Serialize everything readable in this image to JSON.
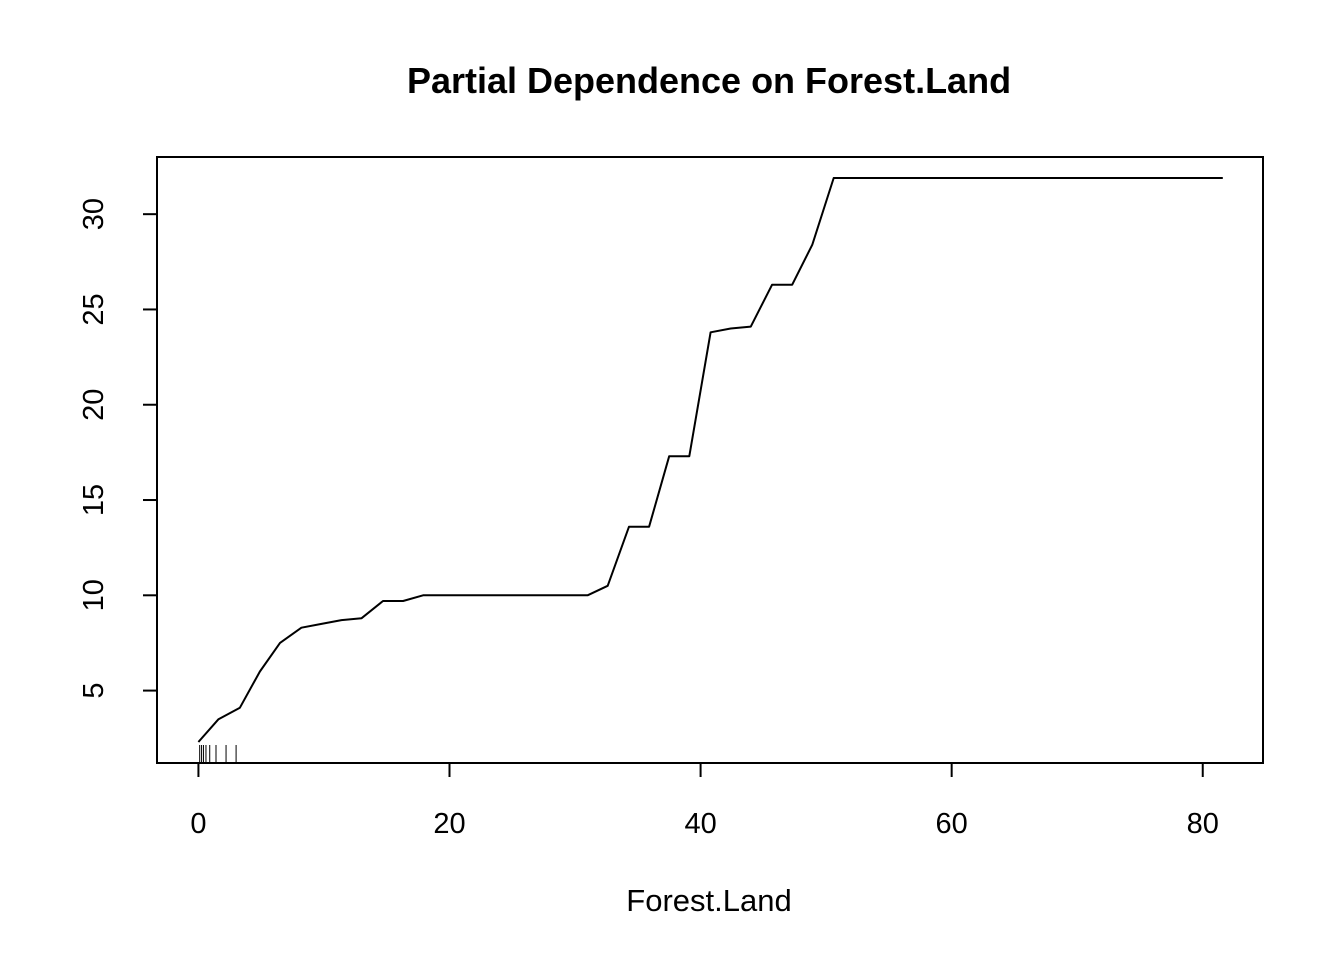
{
  "chart_data": {
    "type": "line",
    "title": "Partial Dependence on Forest.Land",
    "xlabel": "Forest.Land",
    "ylabel": "",
    "xlim": [
      -3.3,
      84.8
    ],
    "ylim": [
      1.2,
      33.0
    ],
    "x_ticks": [
      0,
      20,
      40,
      60,
      80
    ],
    "y_ticks": [
      5,
      10,
      15,
      20,
      25,
      30
    ],
    "grid": false,
    "series": [
      {
        "x": [
          0.0,
          1.6,
          3.3,
          4.9,
          6.5,
          8.2,
          9.8,
          11.4,
          13.0,
          14.7,
          16.3,
          17.9,
          19.6,
          21.2,
          22.8,
          24.5,
          26.1,
          27.7,
          29.4,
          31.0,
          32.6,
          34.3,
          35.9,
          37.5,
          39.1,
          40.8,
          42.4,
          44.0,
          45.7,
          47.3,
          48.9,
          50.6,
          52.2,
          60.0,
          70.0,
          81.6
        ],
        "values": [
          2.3,
          3.5,
          4.1,
          6.0,
          7.5,
          8.3,
          8.5,
          8.7,
          8.8,
          9.7,
          9.7,
          10.0,
          10.0,
          10.0,
          10.0,
          10.0,
          10.0,
          10.0,
          10.0,
          10.0,
          10.5,
          13.6,
          13.6,
          17.3,
          17.3,
          23.8,
          24.0,
          24.1,
          26.3,
          26.3,
          28.4,
          31.9,
          31.9,
          31.9,
          31.9,
          31.9
        ]
      }
    ],
    "rug": [
      0.1,
      0.25,
      0.4,
      0.6,
      0.9,
      1.4,
      2.2,
      3.0
    ]
  }
}
